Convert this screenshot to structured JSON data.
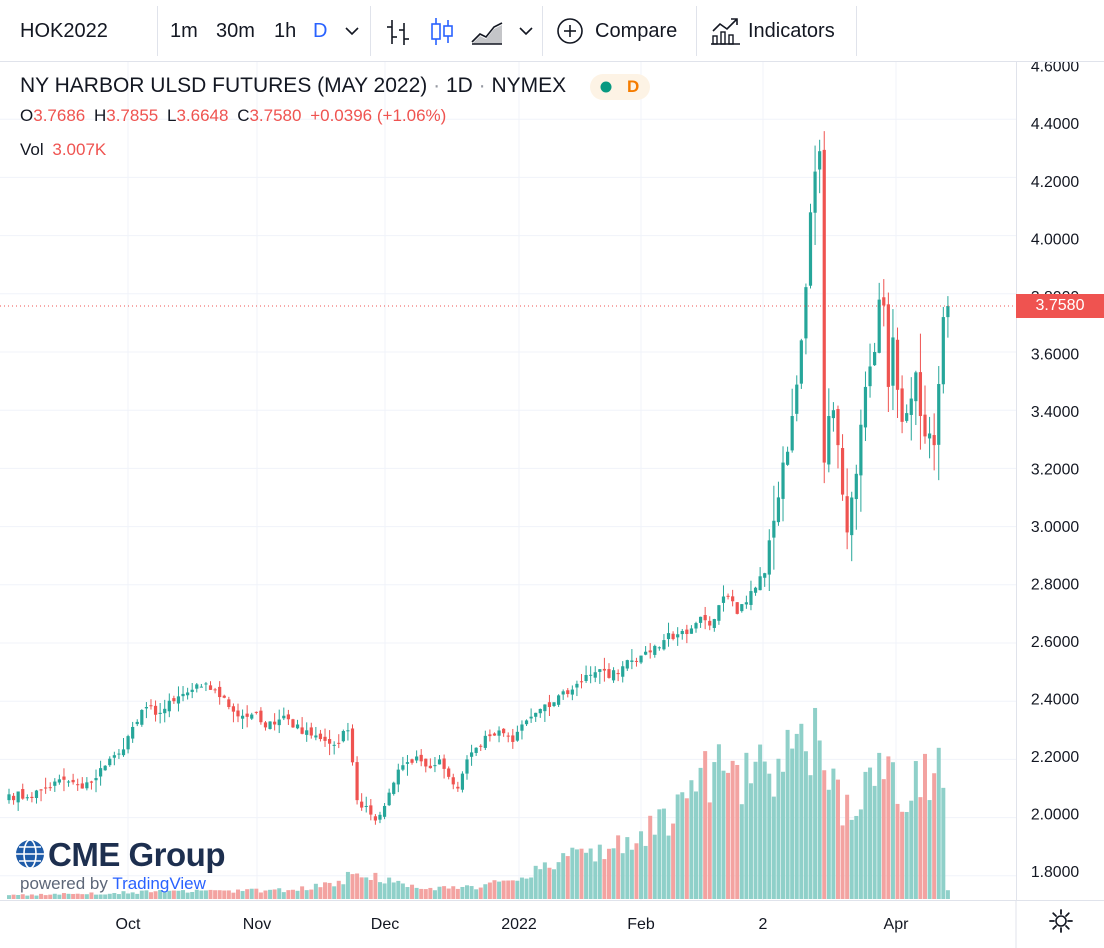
{
  "toolbar": {
    "symbol": "HOK2022",
    "intervals": [
      "1m",
      "30m",
      "1h",
      "D"
    ],
    "compare_label": "Compare",
    "indicators_label": "Indicators"
  },
  "legend": {
    "title": "NY HARBOR ULSD FUTURES (MAY 2022)",
    "interval": "1D",
    "exchange": "NYMEX",
    "status_letter": "D",
    "open_label": "O",
    "open": "3.7686",
    "high_label": "H",
    "high": "3.7855",
    "low_label": "L",
    "low": "3.6648",
    "close_label": "C",
    "close": "3.7580",
    "change": "+0.0396 (+1.06%)",
    "vol_label": "Vol",
    "vol": "3.007K"
  },
  "watermark": {
    "brand": "CME Group",
    "powered_prefix": "powered by",
    "powered_brand": "TradingView"
  },
  "colors": {
    "up": "#26a69a",
    "down": "#ef5350",
    "up_volume": "#8fd0c9",
    "down_volume": "#f3a3a1",
    "grid": "#f0f3fa",
    "accent": "#2962ff"
  },
  "chart_data": {
    "type": "candlestick",
    "title": "NY HARBOR ULSD FUTURES (MAY 2022)",
    "interval": "1D",
    "price_scale": {
      "ticks": [
        "1.8000",
        "2.0000",
        "2.2000",
        "2.4000",
        "2.6000",
        "2.8000",
        "3.0000",
        "3.2000",
        "3.4000",
        "3.6000",
        "3.8000",
        "4.0000",
        "4.2000",
        "4.4000",
        "4.6000"
      ],
      "range": [
        1.75,
        4.62
      ]
    },
    "time_scale": {
      "labels": [
        "Oct",
        "Nov",
        "Dec",
        "2022",
        "Feb",
        "2",
        "Apr"
      ]
    },
    "last_price": "3.7580",
    "grid": true,
    "waypoints": [
      [
        0,
        2.08
      ],
      [
        4,
        2.07
      ],
      [
        8,
        2.1
      ],
      [
        12,
        2.13
      ],
      [
        16,
        2.1
      ],
      [
        18,
        2.12
      ],
      [
        20,
        2.17
      ],
      [
        24,
        2.22
      ],
      [
        26,
        2.28
      ],
      [
        30,
        2.38
      ],
      [
        33,
        2.36
      ],
      [
        36,
        2.4
      ],
      [
        39,
        2.43
      ],
      [
        42,
        2.45
      ],
      [
        45,
        2.44
      ],
      [
        48,
        2.38
      ],
      [
        51,
        2.35
      ],
      [
        54,
        2.36
      ],
      [
        56,
        2.31
      ],
      [
        58,
        2.32
      ],
      [
        60,
        2.35
      ],
      [
        62,
        2.31
      ],
      [
        65,
        2.3
      ],
      [
        68,
        2.27
      ],
      [
        71,
        2.25
      ],
      [
        74,
        2.3
      ],
      [
        75,
        2.19
      ],
      [
        76,
        2.06
      ],
      [
        78,
        2.04
      ],
      [
        80,
        1.99
      ],
      [
        82,
        2.04
      ],
      [
        84,
        2.12
      ],
      [
        86,
        2.18
      ],
      [
        89,
        2.21
      ],
      [
        92,
        2.17
      ],
      [
        94,
        2.2
      ],
      [
        96,
        2.14
      ],
      [
        98,
        2.1
      ],
      [
        100,
        2.2
      ],
      [
        102,
        2.24
      ],
      [
        105,
        2.28
      ],
      [
        108,
        2.29
      ],
      [
        110,
        2.26
      ],
      [
        112,
        2.32
      ],
      [
        115,
        2.36
      ],
      [
        118,
        2.38
      ],
      [
        120,
        2.42
      ],
      [
        123,
        2.44
      ],
      [
        126,
        2.49
      ],
      [
        129,
        2.51
      ],
      [
        131,
        2.48
      ],
      [
        134,
        2.52
      ],
      [
        136,
        2.54
      ],
      [
        139,
        2.57
      ],
      [
        141,
        2.59
      ],
      [
        143,
        2.61
      ],
      [
        146,
        2.63
      ],
      [
        149,
        2.65
      ],
      [
        151,
        2.69
      ],
      [
        153,
        2.66
      ],
      [
        155,
        2.73
      ],
      [
        157,
        2.76
      ],
      [
        159,
        2.7
      ],
      [
        161,
        2.74
      ],
      [
        163,
        2.79
      ],
      [
        165,
        2.84
      ],
      [
        167,
        3.02
      ],
      [
        169,
        3.22
      ],
      [
        171,
        3.38
      ],
      [
        173,
        3.64
      ],
      [
        175,
        4.08
      ],
      [
        176,
        4.22
      ],
      [
        177,
        4.29
      ],
      [
        178,
        3.22
      ],
      [
        179,
        3.38
      ],
      [
        180,
        3.4
      ],
      [
        181,
        3.28
      ],
      [
        182,
        3.11
      ],
      [
        183,
        2.98
      ],
      [
        184,
        3.1
      ],
      [
        186,
        3.35
      ],
      [
        187,
        3.48
      ],
      [
        189,
        3.6
      ],
      [
        190,
        3.78
      ],
      [
        191,
        3.76
      ],
      [
        192,
        3.48
      ],
      [
        193,
        3.65
      ],
      [
        194,
        3.47
      ],
      [
        195,
        3.36
      ],
      [
        196,
        3.39
      ],
      [
        197,
        3.44
      ],
      [
        198,
        3.53
      ],
      [
        199,
        3.38
      ],
      [
        200,
        3.31
      ],
      [
        201,
        3.32
      ],
      [
        202,
        3.28
      ],
      [
        203,
        3.49
      ],
      [
        204,
        3.72
      ],
      [
        205,
        3.758
      ]
    ],
    "volume_waypoints": [
      [
        0,
        0.4
      ],
      [
        30,
        0.8
      ],
      [
        60,
        1.0
      ],
      [
        72,
        1.8
      ],
      [
        75,
        3.0
      ],
      [
        80,
        2.5
      ],
      [
        90,
        1.1
      ],
      [
        100,
        1.3
      ],
      [
        110,
        2.0
      ],
      [
        120,
        4.5
      ],
      [
        135,
        6.5
      ],
      [
        145,
        9.0
      ],
      [
        150,
        14.5
      ],
      [
        160,
        14.0
      ],
      [
        167,
        15.0
      ],
      [
        172,
        16.5
      ],
      [
        176,
        18.0
      ],
      [
        178,
        14.0
      ],
      [
        182,
        11.0
      ],
      [
        186,
        11.5
      ],
      [
        190,
        13.5
      ],
      [
        196,
        12.8
      ],
      [
        200,
        14.0
      ],
      [
        204,
        16.5
      ],
      [
        205,
        1.0
      ]
    ],
    "volume_range": [
      0,
      24
    ]
  }
}
